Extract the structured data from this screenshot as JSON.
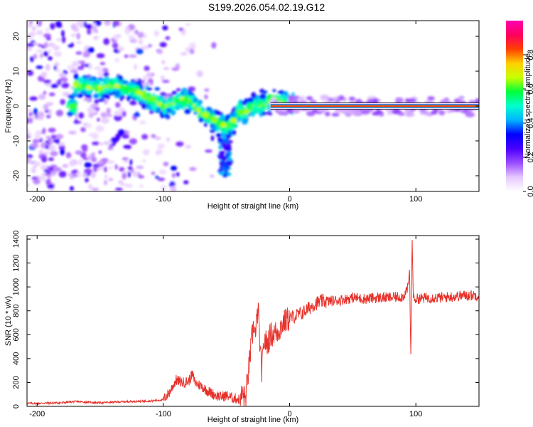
{
  "title": "S199.2026.054.02.19.G12",
  "chart_data": [
    {
      "type": "heatmap",
      "name": "spectrogram",
      "xlabel": "Height of straight line (km)",
      "ylabel": "Frequency (Hz)",
      "xlim": [
        -208,
        150
      ],
      "ylim": [
        -24.5,
        24.5
      ],
      "xticks": [
        -200,
        -100,
        0,
        100
      ],
      "yticks": [
        -20,
        -10,
        0,
        10,
        20
      ],
      "colorbar": {
        "label": "Normalized spectral amplitude",
        "ticks": [
          "0.0",
          "0.2",
          "0.4",
          "0.6",
          "0.8"
        ],
        "tick_values": [
          0,
          0.2,
          0.4,
          0.6,
          0.8
        ],
        "range": [
          0,
          1
        ],
        "colors": [
          "#ffffff",
          "#e6c8ff",
          "#9b4dff",
          "#4b00ff",
          "#0000ff",
          "#00b4ff",
          "#00ffd0",
          "#00ff3c",
          "#c8ff00",
          "#ffd000",
          "#ff4000",
          "#ff0060",
          "#ff00b0"
        ]
      },
      "carrier": {
        "x_start": -15,
        "x_end": 150,
        "freq": 0,
        "amplitude": 0.85
      },
      "scatter_region": {
        "x_start": -208,
        "x_end": -180,
        "freq_min": -24,
        "freq_max": 24
      },
      "ridge": [
        {
          "x": -170,
          "f": 6
        },
        {
          "x": -160,
          "f": 5.5
        },
        {
          "x": -150,
          "f": 5
        },
        {
          "x": -140,
          "f": 6
        },
        {
          "x": -130,
          "f": 5
        },
        {
          "x": -120,
          "f": 4
        },
        {
          "x": -110,
          "f": 2
        },
        {
          "x": -100,
          "f": 0
        },
        {
          "x": -90,
          "f": 1
        },
        {
          "x": -80,
          "f": 2
        },
        {
          "x": -70,
          "f": -2
        },
        {
          "x": -60,
          "f": -4
        },
        {
          "x": -50,
          "f": -6
        },
        {
          "x": -45,
          "f": -5
        },
        {
          "x": -40,
          "f": -1
        },
        {
          "x": -35,
          "f": -2
        },
        {
          "x": -30,
          "f": 0
        },
        {
          "x": -20,
          "f": 0.5
        },
        {
          "x": -15,
          "f": 1.5
        },
        {
          "x": -10,
          "f": 2
        },
        {
          "x": -5,
          "f": 0.8
        },
        {
          "x": 0,
          "f": 1
        },
        {
          "x": 5,
          "f": 0
        }
      ]
    },
    {
      "type": "line",
      "name": "snr",
      "xlabel": "Height of straight line (km)",
      "ylabel": "SNR (10 * v/v)",
      "xlim": [
        -208,
        150
      ],
      "ylim": [
        0,
        1430
      ],
      "xticks": [
        -200,
        -100,
        0,
        100
      ],
      "yticks": [
        0,
        200,
        400,
        600,
        800,
        1000,
        1200,
        1400
      ],
      "color": "#e8312a",
      "series": [
        {
          "name": "SNR",
          "x": [
            -208,
            -200,
            -190,
            -180,
            -170,
            -160,
            -150,
            -140,
            -130,
            -120,
            -110,
            -100,
            -95,
            -90,
            -85,
            -80,
            -77,
            -75,
            -70,
            -65,
            -60,
            -55,
            -50,
            -45,
            -40,
            -37,
            -35,
            -32,
            -30,
            -28,
            -27,
            -25,
            -23,
            -22,
            -20,
            -18,
            -15,
            -10,
            -5,
            0,
            5,
            10,
            15,
            20,
            25,
            30,
            40,
            50,
            60,
            70,
            80,
            90,
            94,
            95,
            96,
            97,
            98,
            100,
            110,
            120,
            130,
            140,
            150
          ],
          "y": [
            25,
            25,
            28,
            30,
            40,
            35,
            30,
            35,
            40,
            42,
            45,
            55,
            120,
            220,
            200,
            210,
            270,
            200,
            170,
            130,
            100,
            80,
            90,
            70,
            60,
            100,
            60,
            350,
            560,
            700,
            580,
            840,
            400,
            300,
            560,
            520,
            600,
            620,
            700,
            740,
            760,
            780,
            820,
            860,
            880,
            880,
            890,
            910,
            900,
            910,
            910,
            920,
            1000,
            1160,
            390,
            1430,
            900,
            900,
            910,
            910,
            920,
            930,
            930
          ]
        }
      ]
    }
  ]
}
